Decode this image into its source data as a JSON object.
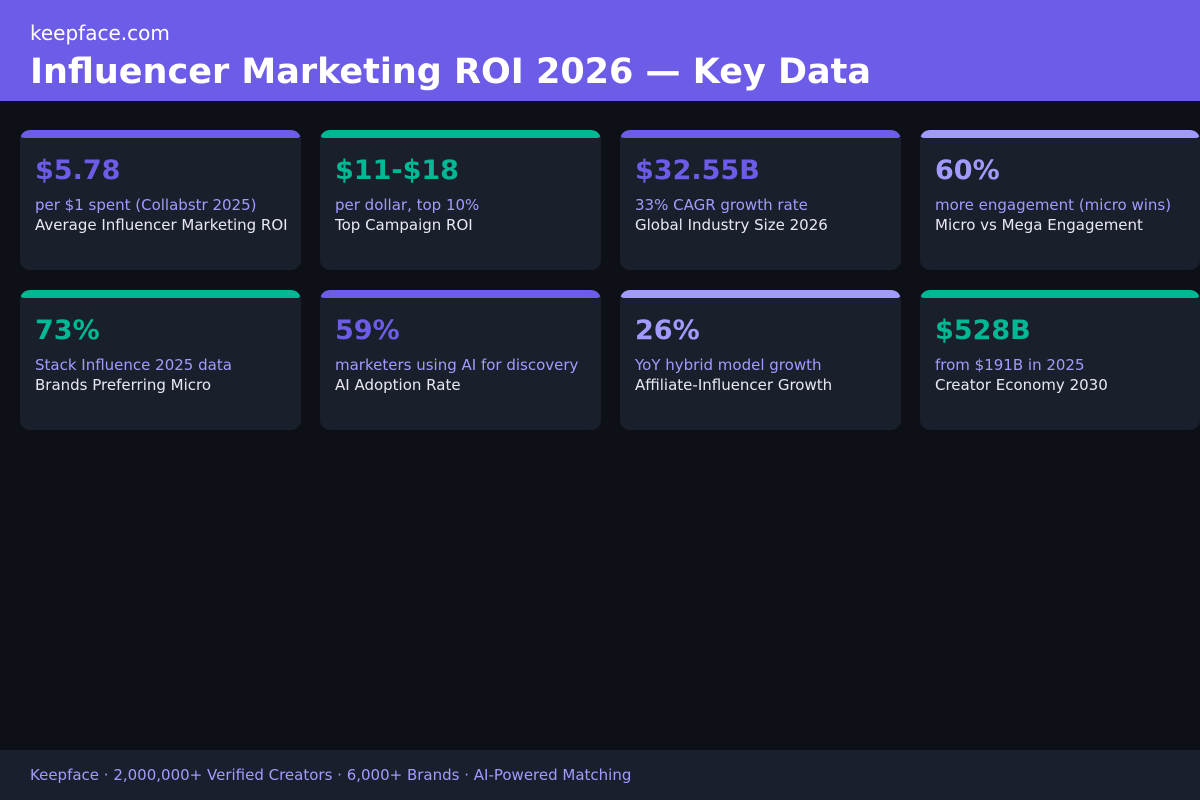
{
  "header": {
    "brand": "keepface.com",
    "title": "Influencer Marketing ROI 2026 — Key Data",
    "background": "#6c5ce7"
  },
  "cards": [
    {
      "value": "$5.78",
      "subtitle": "per $1 spent (Collabstr 2025)",
      "label": "Average Influencer Marketing ROI",
      "accent": "#6c5ce7"
    },
    {
      "value": "$11-$18",
      "subtitle": "per dollar, top 10%",
      "label": "Top Campaign ROI",
      "accent": "#00b894"
    },
    {
      "value": "$32.55B",
      "subtitle": "33% CAGR growth rate",
      "label": "Global Industry Size 2026",
      "accent": "#6c5ce7"
    },
    {
      "value": "60%",
      "subtitle": "more engagement (micro wins)",
      "label": "Micro vs Mega Engagement",
      "accent": "#a29bfe"
    },
    {
      "value": "73%",
      "subtitle": "Stack Influence 2025 data",
      "label": "Brands Preferring Micro",
      "accent": "#00b894"
    },
    {
      "value": "59%",
      "subtitle": "marketers using AI for discovery",
      "label": "AI Adoption Rate",
      "accent": "#6c5ce7"
    },
    {
      "value": "26%",
      "subtitle": "YoY hybrid model growth",
      "label": "Affiliate-Influencer Growth",
      "accent": "#a29bfe"
    },
    {
      "value": "$528B",
      "subtitle": "from $191B in 2025",
      "label": "Creator Economy 2030",
      "accent": "#00b894"
    }
  ],
  "footer": {
    "text": "Keepface · 2,000,000+ Verified Creators · 6,000+ Brands · AI-Powered Matching"
  }
}
